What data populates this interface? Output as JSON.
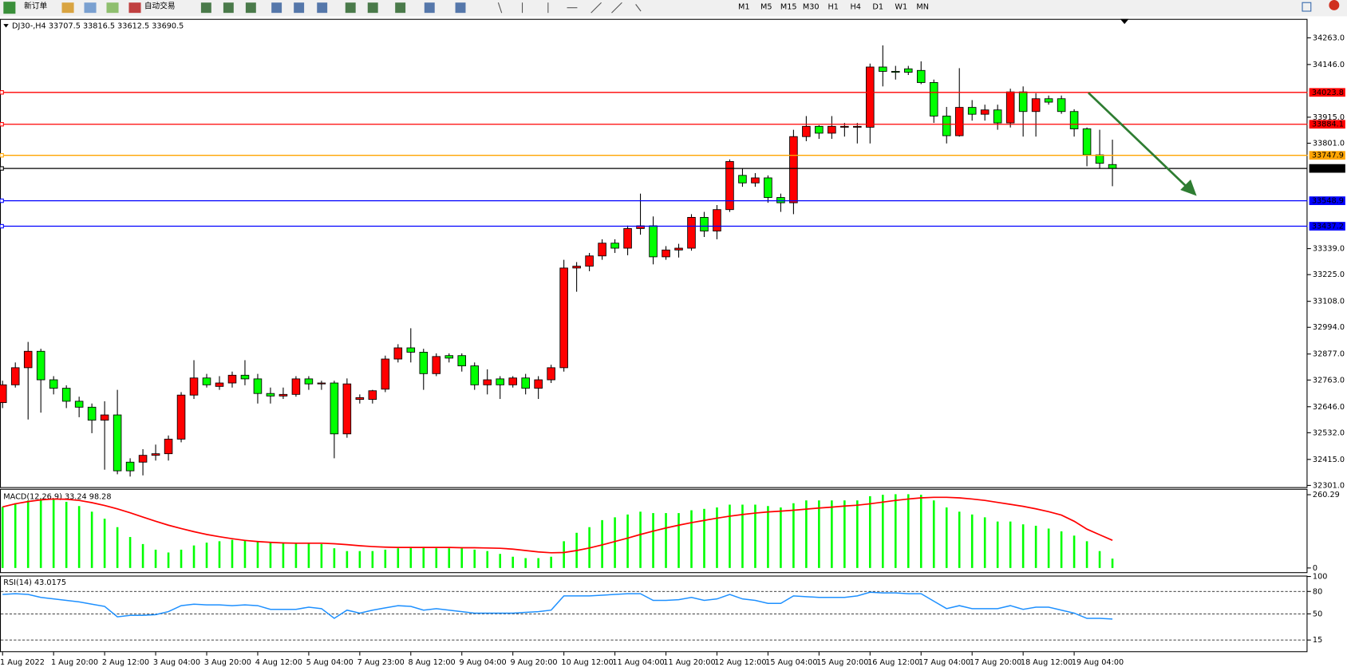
{
  "toolbar": {
    "new_order": "新订单",
    "auto_trading": "自动交易",
    "timeframes": [
      "M1",
      "M5",
      "M15",
      "M30",
      "H1",
      "H4",
      "D1",
      "W1",
      "MN"
    ]
  },
  "chart_data": [
    {
      "type": "candlestick",
      "title": "DJ30-,H4",
      "up_color": "#ff0000",
      "down_color": "#00ff00",
      "categories": [
        "1 Aug 2022",
        null,
        null,
        null,
        "1 Aug 20:00",
        null,
        null,
        null,
        "2 Aug 12:00",
        null,
        null,
        null,
        "3 Aug 04:00",
        null,
        null,
        null,
        "3 Aug 20:00",
        null,
        null,
        null,
        "4 Aug 12:00",
        null,
        null,
        null,
        "5 Aug 04:00",
        null,
        null,
        null,
        "7 Aug 23:00",
        null,
        null,
        null,
        "8 Aug 12:00",
        null,
        null,
        null,
        "9 Aug 04:00",
        null,
        null,
        null,
        "9 Aug 20:00",
        null,
        null,
        null,
        "10 Aug 12:00",
        null,
        null,
        null,
        "11 Aug 04:00",
        null,
        null,
        null,
        "11 Aug 20:00",
        null,
        null,
        null,
        "12 Aug 12:00",
        null,
        null,
        null,
        "15 Aug 04:00",
        null,
        null,
        null,
        "15 Aug 20:00",
        null,
        null,
        null,
        "16 Aug 12:00",
        null,
        null,
        null,
        "17 Aug 04:00",
        null,
        null,
        null,
        "17 Aug 20:00",
        null,
        null,
        null,
        "18 Aug 12:00",
        null,
        null,
        null,
        "19 Aug 04:00",
        null,
        null,
        null
      ],
      "open": [
        32664,
        32742,
        32817,
        32889,
        32764,
        32727,
        32670,
        32644,
        32587,
        32610,
        32403,
        32403,
        32433,
        32440,
        32504,
        32697,
        32772,
        32735,
        32750,
        32784,
        32768,
        32704,
        32693,
        32700,
        32768,
        32746,
        32750,
        32527,
        32678,
        32678,
        32723,
        32855,
        32904,
        32885,
        32791,
        32870,
        32870,
        32825,
        32742,
        32768,
        32742,
        32772,
        32727,
        32764,
        32817,
        33254,
        33262,
        33307,
        33363,
        33341,
        33427,
        33439,
        33303,
        33333,
        33341,
        33476,
        33416,
        33510,
        33660,
        33627,
        33649,
        33563,
        33540,
        33830,
        33875,
        33845,
        33871,
        33871,
        33871,
        34135,
        34116,
        34127,
        34120,
        34067,
        33920,
        33834,
        33958,
        33928,
        33947,
        33890,
        34026,
        33940,
        33996,
        33996,
        33940,
        33864,
        33750,
        33707.5
      ],
      "high": [
        32760,
        32840,
        32930,
        32900,
        32780,
        32740,
        32690,
        32660,
        32670,
        32720,
        32420,
        32460,
        32480,
        32520,
        32710,
        32850,
        32790,
        32780,
        32800,
        32850,
        32790,
        32730,
        32730,
        32780,
        32780,
        32760,
        32760,
        32770,
        32700,
        32720,
        32870,
        32920,
        32990,
        32900,
        32880,
        32880,
        32880,
        32840,
        32810,
        32780,
        32780,
        32790,
        32780,
        32830,
        33290,
        33280,
        33320,
        33380,
        33380,
        33440,
        33580,
        33480,
        33350,
        33360,
        33490,
        33500,
        33530,
        33730,
        33690,
        33670,
        33660,
        33580,
        33860,
        33920,
        33880,
        33920,
        33890,
        33890,
        34150,
        34230,
        34140,
        34140,
        34160,
        34080,
        33960,
        34130,
        33990,
        33970,
        33970,
        34040,
        34050,
        34020,
        34010,
        34010,
        33950,
        33870,
        33860,
        33816.5
      ],
      "low": [
        32640,
        32730,
        32590,
        32620,
        32700,
        32640,
        32600,
        32530,
        32370,
        32350,
        32340,
        32345,
        32410,
        32410,
        32490,
        32680,
        32730,
        32720,
        32730,
        32740,
        32660,
        32660,
        32680,
        32690,
        32720,
        32720,
        32420,
        32510,
        32660,
        32660,
        32710,
        32840,
        32840,
        32720,
        32780,
        32840,
        32800,
        32720,
        32700,
        32680,
        32730,
        32700,
        32680,
        32750,
        32800,
        33150,
        33240,
        33290,
        33320,
        33310,
        33400,
        33270,
        33290,
        33300,
        33330,
        33390,
        33380,
        33500,
        33610,
        33610,
        33540,
        33500,
        33490,
        33810,
        33820,
        33820,
        33830,
        33800,
        33800,
        34050,
        34080,
        34100,
        34060,
        33890,
        33800,
        33830,
        33900,
        33900,
        33860,
        33870,
        33830,
        33830,
        33970,
        33930,
        33830,
        33700,
        33690,
        33612.5
      ],
      "close": [
        32742,
        32817,
        32889,
        32764,
        32727,
        32670,
        32644,
        32587,
        32610,
        32365,
        32365,
        32433,
        32440,
        32504,
        32697,
        32772,
        32742,
        32750,
        32784,
        32768,
        32704,
        32693,
        32700,
        32768,
        32746,
        32750,
        32527,
        32746,
        32686,
        32716,
        32855,
        32904,
        32885,
        32791,
        32866,
        32859,
        32825,
        32742,
        32764,
        32742,
        32772,
        32727,
        32764,
        32817,
        33254,
        33262,
        33307,
        33363,
        33341,
        33427,
        33439,
        33303,
        33333,
        33341,
        33476,
        33416,
        33510,
        33721,
        33627,
        33649,
        33563,
        33540,
        33830,
        33875,
        33845,
        33875,
        33875,
        33875,
        34135,
        34116,
        34112,
        34112,
        34067,
        33920,
        33834,
        33958,
        33928,
        33947,
        33890,
        34026,
        33940,
        33996,
        33981,
        33940,
        33864,
        33750,
        33713,
        33690.5
      ],
      "ylim": [
        32293.5,
        34345.9
      ],
      "yticks": [
        {
          "value": 34263,
          "label": "34263.0"
        },
        {
          "value": 34146,
          "label": "34146.0"
        },
        {
          "value": 33915,
          "label": "33915.0"
        },
        {
          "value": 33801,
          "label": "33801.0"
        },
        {
          "value": 33339,
          "label": "33339.0"
        },
        {
          "value": 33225,
          "label": "33225.0"
        },
        {
          "value": 33108,
          "label": "33108.0"
        },
        {
          "value": 32994,
          "label": "32994.0"
        },
        {
          "value": 32877,
          "label": "32877.0"
        },
        {
          "value": 32763,
          "label": "32763.0"
        },
        {
          "value": 32646,
          "label": "32646.0"
        },
        {
          "value": 32532,
          "label": "32532.0"
        },
        {
          "value": 32415,
          "label": "32415.0"
        },
        {
          "value": 32301,
          "label": "32301.0"
        }
      ],
      "price_lines": [
        {
          "value": 34023.8,
          "color": "#ff0000"
        },
        {
          "value": 33884.1,
          "color": "#ff0000"
        },
        {
          "value": 33747.9,
          "color": "#ffa500"
        },
        {
          "value": 33690.5,
          "color": "#000000"
        },
        {
          "value": 33548.9,
          "color": "#0000ff"
        },
        {
          "value": 33437.2,
          "color": "#0000ff"
        }
      ]
    },
    {
      "type": "macd",
      "title": "MACD(12,26,9)",
      "ylim": [
        -15,
        278
      ],
      "yticks": [
        0,
        260.29
      ],
      "series": [
        {
          "color": "#00ff00",
          "values": [
            217,
            230,
            240,
            245,
            245,
            235,
            220,
            200,
            175,
            145,
            110,
            85,
            65,
            55,
            65,
            80,
            90,
            95,
            100,
            100,
            95,
            90,
            90,
            90,
            90,
            85,
            70,
            60,
            60,
            60,
            65,
            70,
            75,
            75,
            70,
            70,
            70,
            65,
            60,
            50,
            40,
            35,
            35,
            40,
            95,
            125,
            145,
            170,
            180,
            190,
            200,
            195,
            195,
            195,
            205,
            210,
            215,
            225,
            225,
            225,
            220,
            215,
            230,
            240,
            240,
            240,
            240,
            240,
            255,
            260,
            262,
            262,
            260,
            240,
            215,
            200,
            190,
            180,
            165,
            165,
            155,
            150,
            140,
            130,
            115,
            95,
            60,
            33.24
          ]
        },
        {
          "color": "#ff0000",
          "values": [
            217,
            228,
            236,
            242,
            245,
            244,
            240,
            232,
            222,
            210,
            196,
            181,
            166,
            152,
            140,
            129,
            119,
            111,
            104,
            98,
            94,
            91,
            89,
            88,
            88,
            88,
            86,
            83,
            79,
            76,
            74,
            73,
            73,
            73,
            73,
            73,
            72,
            72,
            71,
            70,
            67,
            62,
            57,
            54,
            55,
            62,
            71,
            82,
            94,
            106,
            119,
            131,
            142,
            152,
            161,
            169,
            177,
            184,
            190,
            195,
            199,
            202,
            205,
            209,
            213,
            216,
            220,
            223,
            228,
            234,
            240,
            245,
            249,
            251,
            251,
            249,
            245,
            240,
            233,
            226,
            219,
            210,
            200,
            188,
            166,
            138,
            118,
            98.28
          ]
        }
      ]
    },
    {
      "type": "line",
      "title": "RSI(14)",
      "color": "#1e90ff",
      "ylim": [
        0,
        100
      ],
      "yticks": [
        15,
        50,
        80,
        100
      ],
      "levels": [
        15,
        50,
        80
      ],
      "values": [
        76,
        77,
        76,
        72,
        70,
        68,
        66,
        63,
        60,
        46,
        48,
        48,
        49,
        53,
        61,
        63,
        62,
        62,
        61,
        62,
        61,
        56,
        56,
        56,
        59,
        57,
        44,
        55,
        51,
        55,
        58,
        61,
        60,
        55,
        57,
        55,
        53,
        51,
        51,
        51,
        51,
        52,
        53,
        55,
        74,
        74,
        74,
        75,
        76,
        77,
        77,
        68,
        68,
        69,
        72,
        68,
        70,
        76,
        70,
        68,
        64,
        64,
        74,
        73,
        72,
        72,
        72,
        74,
        79,
        78,
        78,
        77,
        77,
        67,
        57,
        61,
        57,
        57,
        57,
        61,
        56,
        59,
        59,
        55,
        51,
        44,
        44,
        43.0175
      ]
    }
  ]
}
